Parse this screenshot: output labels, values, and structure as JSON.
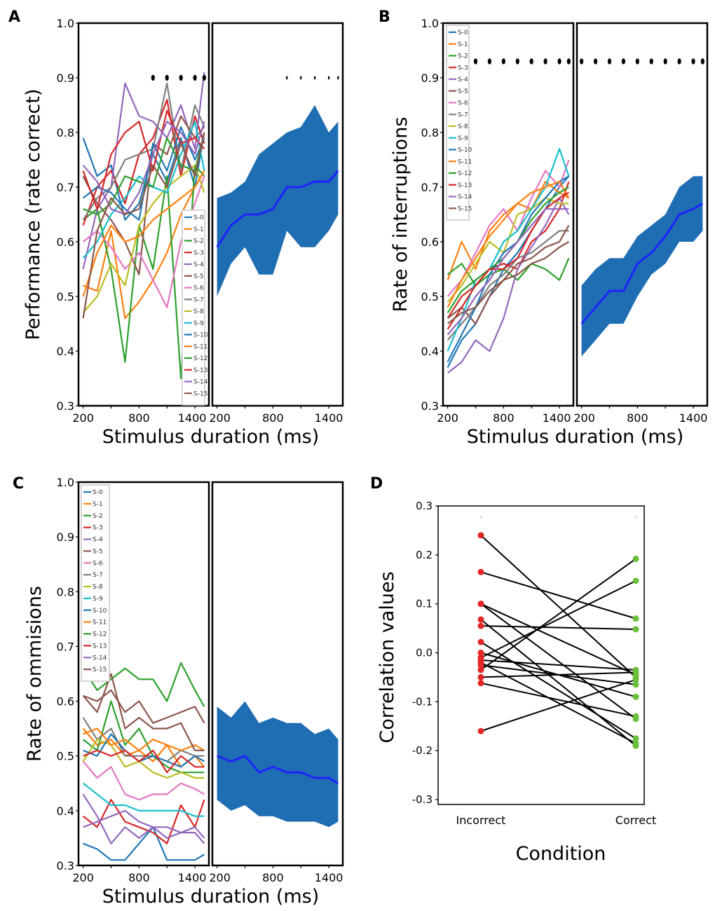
{
  "figure": {
    "panel_labels": [
      "A",
      "B",
      "C",
      "D"
    ],
    "subject_labels": [
      "S-0",
      "S-1",
      "S-2",
      "S-3",
      "S-4",
      "S-5",
      "S-6",
      "S-7",
      "S-8",
      "S-9",
      "S-10",
      "S-11",
      "S-12",
      "S-13",
      "S-14",
      "S-15"
    ],
    "subject_colors": [
      "#1f77b4",
      "#ff7f0e",
      "#2ca02c",
      "#d62728",
      "#9467bd",
      "#8c564b",
      "#e377c2",
      "#7f7f7f",
      "#bcbd22",
      "#17becf",
      "#1f77b4",
      "#ff7f0e",
      "#2ca02c",
      "#d62728",
      "#9467bd",
      "#8c564b"
    ],
    "mean_color": "#1f1fff",
    "band_color": "#1f6db3"
  },
  "chart_data": [
    {
      "panel": "A",
      "type": "line",
      "ylabel": "Performance (rate correct)",
      "xlabel": "Stimulus duration (ms)",
      "x_ticks": [
        "200",
        "800",
        "1400"
      ],
      "y_ticks": [
        "0.3",
        "0.4",
        "0.5",
        "0.6",
        "0.7",
        "0.8",
        "0.9",
        "1.0"
      ],
      "ylim": [
        0.3,
        1.0
      ],
      "xlim": [
        150,
        1550
      ],
      "x": [
        200,
        350,
        500,
        650,
        800,
        950,
        1100,
        1250,
        1400,
        1500
      ],
      "series": [
        {
          "name": "S-0",
          "values": [
            0.79,
            0.72,
            0.74,
            0.64,
            0.67,
            0.76,
            0.71,
            0.79,
            0.7,
            0.8
          ]
        },
        {
          "name": "S-1",
          "values": [
            0.52,
            0.51,
            0.62,
            0.46,
            0.49,
            0.53,
            0.58,
            0.65,
            0.7,
            0.73
          ]
        },
        {
          "name": "S-2",
          "values": [
            0.64,
            0.66,
            0.55,
            0.38,
            0.63,
            0.55,
            0.72,
            0.35,
            0.74,
            0.72
          ]
        },
        {
          "name": "S-3",
          "values": [
            0.63,
            0.7,
            0.73,
            0.67,
            0.76,
            0.79,
            0.86,
            0.72,
            0.83,
            0.78
          ]
        },
        {
          "name": "S-4",
          "values": [
            0.55,
            0.66,
            0.7,
            0.89,
            0.83,
            0.82,
            0.79,
            0.85,
            0.77,
            0.91
          ]
        },
        {
          "name": "S-5",
          "values": [
            0.72,
            0.67,
            0.64,
            0.6,
            0.54,
            0.78,
            0.76,
            0.83,
            0.79,
            0.81
          ]
        },
        {
          "name": "S-6",
          "values": [
            0.6,
            0.62,
            0.59,
            0.55,
            0.58,
            0.53,
            0.48,
            0.6,
            0.67,
            0.72
          ]
        },
        {
          "name": "S-7",
          "values": [
            0.64,
            0.68,
            0.7,
            0.75,
            0.76,
            0.77,
            0.89,
            0.73,
            0.85,
            0.81
          ]
        },
        {
          "name": "S-8",
          "values": [
            0.47,
            0.5,
            0.56,
            0.52,
            0.63,
            0.67,
            0.7,
            0.72,
            0.74,
            0.69
          ]
        },
        {
          "name": "S-9",
          "values": [
            0.57,
            0.6,
            0.65,
            0.68,
            0.72,
            0.7,
            0.69,
            0.76,
            0.82,
            0.73
          ]
        },
        {
          "name": "S-10",
          "values": [
            0.68,
            0.7,
            0.69,
            0.66,
            0.64,
            0.78,
            0.73,
            0.81,
            0.75,
            0.79
          ]
        },
        {
          "name": "S-11",
          "values": [
            0.5,
            0.58,
            0.63,
            0.6,
            0.61,
            0.64,
            0.66,
            0.68,
            0.7,
            0.73
          ]
        },
        {
          "name": "S-12",
          "values": [
            0.66,
            0.65,
            0.67,
            0.72,
            0.71,
            0.7,
            0.79,
            0.74,
            0.73,
            0.8
          ]
        },
        {
          "name": "S-13",
          "values": [
            0.73,
            0.66,
            0.76,
            0.8,
            0.82,
            0.73,
            0.84,
            0.78,
            0.79,
            0.77
          ]
        },
        {
          "name": "S-14",
          "values": [
            0.74,
            0.71,
            0.66,
            0.65,
            0.69,
            0.76,
            0.82,
            0.8,
            0.76,
            0.82
          ]
        },
        {
          "name": "S-15",
          "values": [
            0.46,
            0.62,
            0.68,
            0.65,
            0.66,
            0.74,
            0.7,
            0.78,
            0.72,
            0.8
          ]
        }
      ],
      "mean": [
        0.59,
        0.63,
        0.65,
        0.65,
        0.66,
        0.7,
        0.7,
        0.71,
        0.71,
        0.73
      ],
      "band_upper": [
        0.68,
        0.69,
        0.71,
        0.76,
        0.78,
        0.8,
        0.81,
        0.85,
        0.8,
        0.82
      ],
      "band_lower": [
        0.5,
        0.56,
        0.59,
        0.54,
        0.54,
        0.62,
        0.59,
        0.59,
        0.62,
        0.65
      ],
      "sig_dots_individual_x": [
        950,
        1100,
        1250,
        1400,
        1500
      ],
      "sig_dots_mean_x": [
        950,
        1100,
        1250,
        1400,
        1500
      ],
      "sig_y": 0.9
    },
    {
      "panel": "B",
      "type": "line",
      "ylabel": "Rate of interruptions",
      "xlabel": "Stimulus duration (ms)",
      "x_ticks": [
        "200",
        "800",
        "1400"
      ],
      "y_ticks": [
        "0.3",
        "0.4",
        "0.5",
        "0.6",
        "0.7",
        "0.8",
        "0.9",
        "1.0"
      ],
      "ylim": [
        0.3,
        1.0
      ],
      "xlim": [
        150,
        1550
      ],
      "x": [
        200,
        350,
        500,
        650,
        800,
        950,
        1100,
        1250,
        1400,
        1500
      ],
      "series": [
        {
          "name": "S-0",
          "values": [
            0.37,
            0.42,
            0.45,
            0.5,
            0.55,
            0.58,
            0.62,
            0.66,
            0.7,
            0.72
          ]
        },
        {
          "name": "S-1",
          "values": [
            0.53,
            0.6,
            0.55,
            0.62,
            0.65,
            0.67,
            0.66,
            0.71,
            0.69,
            0.68
          ]
        },
        {
          "name": "S-2",
          "values": [
            0.54,
            0.56,
            0.52,
            0.54,
            0.55,
            0.53,
            0.56,
            0.55,
            0.53,
            0.57
          ]
        },
        {
          "name": "S-3",
          "values": [
            0.46,
            0.5,
            0.52,
            0.55,
            0.56,
            0.55,
            0.6,
            0.62,
            0.66,
            0.71
          ]
        },
        {
          "name": "S-4",
          "values": [
            0.36,
            0.38,
            0.42,
            0.4,
            0.46,
            0.55,
            0.59,
            0.63,
            0.68,
            0.65
          ]
        },
        {
          "name": "S-5",
          "values": [
            0.46,
            0.48,
            0.45,
            0.5,
            0.53,
            0.54,
            0.56,
            0.57,
            0.59,
            0.6
          ]
        },
        {
          "name": "S-6",
          "values": [
            0.5,
            0.53,
            0.58,
            0.63,
            0.66,
            0.62,
            0.68,
            0.73,
            0.7,
            0.75
          ]
        },
        {
          "name": "S-7",
          "values": [
            0.42,
            0.45,
            0.48,
            0.52,
            0.54,
            0.57,
            0.58,
            0.6,
            0.62,
            0.62
          ]
        },
        {
          "name": "S-8",
          "values": [
            0.49,
            0.52,
            0.56,
            0.6,
            0.58,
            0.65,
            0.66,
            0.68,
            0.67,
            0.67
          ]
        },
        {
          "name": "S-9",
          "values": [
            0.4,
            0.46,
            0.53,
            0.55,
            0.6,
            0.62,
            0.66,
            0.7,
            0.77,
            0.72
          ]
        },
        {
          "name": "S-10",
          "values": [
            0.38,
            0.43,
            0.48,
            0.54,
            0.58,
            0.6,
            0.65,
            0.68,
            0.71,
            0.72
          ]
        },
        {
          "name": "S-11",
          "values": [
            0.48,
            0.53,
            0.57,
            0.61,
            0.64,
            0.67,
            0.69,
            0.7,
            0.71,
            0.68
          ]
        },
        {
          "name": "S-12",
          "values": [
            0.47,
            0.51,
            0.53,
            0.55,
            0.57,
            0.6,
            0.64,
            0.67,
            0.69,
            0.7
          ]
        },
        {
          "name": "S-13",
          "values": [
            0.44,
            0.48,
            0.52,
            0.55,
            0.55,
            0.57,
            0.62,
            0.66,
            0.68,
            0.69
          ]
        },
        {
          "name": "S-14",
          "values": [
            0.43,
            0.46,
            0.5,
            0.53,
            0.57,
            0.6,
            0.63,
            0.66,
            0.66,
            0.66
          ]
        },
        {
          "name": "S-15",
          "values": [
            0.45,
            0.47,
            0.48,
            0.51,
            0.53,
            0.56,
            0.57,
            0.59,
            0.6,
            0.63
          ]
        }
      ],
      "mean": [
        0.45,
        0.48,
        0.51,
        0.51,
        0.56,
        0.58,
        0.61,
        0.65,
        0.66,
        0.67
      ],
      "band_upper": [
        0.52,
        0.55,
        0.57,
        0.57,
        0.61,
        0.63,
        0.65,
        0.7,
        0.72,
        0.72
      ],
      "band_lower": [
        0.39,
        0.42,
        0.45,
        0.45,
        0.5,
        0.54,
        0.56,
        0.6,
        0.6,
        0.62
      ],
      "sig_dots_individual_x": [
        200,
        350,
        500,
        650,
        800,
        950,
        1100,
        1250,
        1400,
        1500
      ],
      "sig_dots_mean_x": [
        200,
        350,
        500,
        650,
        800,
        950,
        1100,
        1250,
        1400,
        1500
      ],
      "sig_y": 0.93
    },
    {
      "panel": "C",
      "type": "line",
      "ylabel": "Rate of ommisions",
      "xlabel": "Stimulus duration (ms)",
      "x_ticks": [
        "200",
        "800",
        "1400"
      ],
      "y_ticks": [
        "0.3",
        "0.4",
        "0.5",
        "0.6",
        "0.7",
        "0.8",
        "0.9",
        "1.0"
      ],
      "ylim": [
        0.3,
        1.0
      ],
      "xlim": [
        150,
        1550
      ],
      "x": [
        200,
        350,
        500,
        650,
        800,
        950,
        1100,
        1250,
        1400,
        1500
      ],
      "series": [
        {
          "name": "S-0",
          "values": [
            0.34,
            0.33,
            0.31,
            0.31,
            0.34,
            0.37,
            0.31,
            0.31,
            0.31,
            0.32
          ]
        },
        {
          "name": "S-1",
          "values": [
            0.55,
            0.52,
            0.53,
            0.5,
            0.51,
            0.49,
            0.52,
            0.48,
            0.5,
            0.48
          ]
        },
        {
          "name": "S-2",
          "values": [
            0.53,
            0.51,
            0.6,
            0.52,
            0.55,
            0.5,
            0.48,
            0.47,
            0.47,
            0.47
          ]
        },
        {
          "name": "S-3",
          "values": [
            0.39,
            0.37,
            0.42,
            0.38,
            0.37,
            0.36,
            0.34,
            0.41,
            0.37,
            0.42
          ]
        },
        {
          "name": "S-4",
          "values": [
            0.43,
            0.39,
            0.34,
            0.37,
            0.35,
            0.37,
            0.37,
            0.36,
            0.36,
            0.34
          ]
        },
        {
          "name": "S-5",
          "values": [
            0.61,
            0.6,
            0.62,
            0.58,
            0.6,
            0.56,
            0.57,
            0.58,
            0.59,
            0.56
          ]
        },
        {
          "name": "S-6",
          "values": [
            0.49,
            0.46,
            0.48,
            0.43,
            0.42,
            0.43,
            0.43,
            0.45,
            0.44,
            0.43
          ]
        },
        {
          "name": "S-7",
          "values": [
            0.57,
            0.53,
            0.55,
            0.5,
            0.5,
            0.5,
            0.49,
            0.51,
            0.5,
            0.5
          ]
        },
        {
          "name": "S-8",
          "values": [
            0.49,
            0.53,
            0.52,
            0.48,
            0.49,
            0.47,
            0.46,
            0.47,
            0.46,
            0.46
          ]
        },
        {
          "name": "S-9",
          "values": [
            0.45,
            0.43,
            0.41,
            0.41,
            0.4,
            0.4,
            0.4,
            0.4,
            0.39,
            0.39
          ]
        },
        {
          "name": "S-10",
          "values": [
            0.51,
            0.5,
            0.54,
            0.51,
            0.49,
            0.5,
            0.49,
            0.48,
            0.5,
            0.49
          ]
        },
        {
          "name": "S-11",
          "values": [
            0.54,
            0.55,
            0.52,
            0.53,
            0.51,
            0.53,
            0.52,
            0.51,
            0.52,
            0.51
          ]
        },
        {
          "name": "S-12",
          "values": [
            0.66,
            0.62,
            0.64,
            0.66,
            0.64,
            0.64,
            0.6,
            0.67,
            0.62,
            0.59
          ]
        },
        {
          "name": "S-13",
          "values": [
            0.5,
            0.51,
            0.5,
            0.51,
            0.49,
            0.51,
            0.47,
            0.5,
            0.48,
            0.48
          ]
        },
        {
          "name": "S-14",
          "values": [
            0.37,
            0.38,
            0.39,
            0.4,
            0.38,
            0.37,
            0.35,
            0.36,
            0.37,
            0.35
          ]
        },
        {
          "name": "S-15",
          "values": [
            0.61,
            0.58,
            0.65,
            0.55,
            0.57,
            0.55,
            0.55,
            0.56,
            0.51,
            0.51
          ]
        }
      ],
      "mean": [
        0.5,
        0.49,
        0.5,
        0.47,
        0.48,
        0.47,
        0.47,
        0.46,
        0.46,
        0.45
      ],
      "band_upper": [
        0.59,
        0.57,
        0.6,
        0.56,
        0.57,
        0.56,
        0.56,
        0.54,
        0.55,
        0.53
      ],
      "band_lower": [
        0.42,
        0.4,
        0.41,
        0.39,
        0.39,
        0.38,
        0.38,
        0.38,
        0.37,
        0.38
      ],
      "sig_dots_individual_x": [],
      "sig_dots_mean_x": [],
      "sig_y": 0.9
    },
    {
      "panel": "D",
      "type": "scatter",
      "ylabel": "Correlation values",
      "xlabel": "Condition",
      "categories": [
        "Incorrect",
        "Correct"
      ],
      "y_ticks": [
        "-0.3",
        "-0.2",
        "-0.1",
        "0.0",
        "0.1",
        "0.2",
        "0.3"
      ],
      "ylim": [
        -0.31,
        0.3
      ],
      "incorrect_color": "#e32626",
      "correct_color": "#6abf3a",
      "pairs": [
        [
          0.24,
          -0.05
        ],
        [
          0.165,
          0.07
        ],
        [
          0.1,
          -0.135
        ],
        [
          0.1,
          -0.045
        ],
        [
          0.068,
          -0.19
        ],
        [
          0.055,
          0.048
        ],
        [
          0.022,
          -0.175
        ],
        [
          0.0,
          -0.09
        ],
        [
          -0.01,
          0.147
        ],
        [
          -0.015,
          -0.035
        ],
        [
          -0.02,
          -0.185
        ],
        [
          -0.025,
          -0.065
        ],
        [
          -0.035,
          0.192
        ],
        [
          -0.05,
          -0.04
        ],
        [
          -0.062,
          -0.13
        ],
        [
          -0.16,
          -0.055
        ]
      ]
    }
  ]
}
